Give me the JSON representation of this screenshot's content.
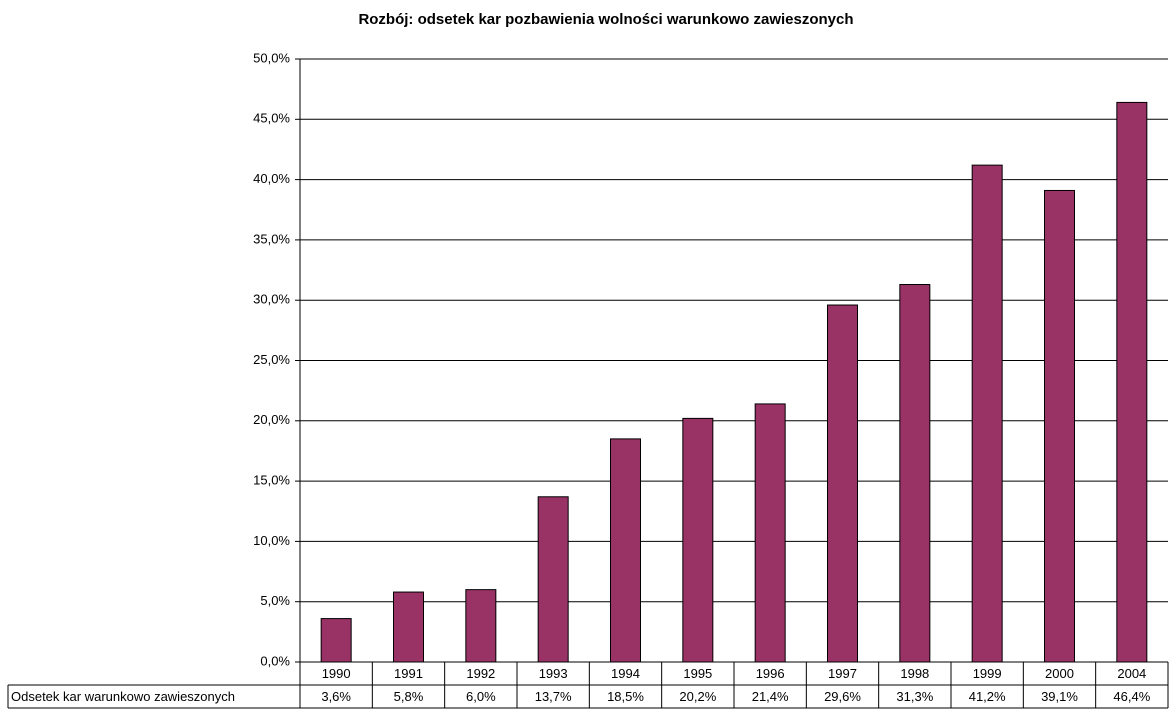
{
  "chart_data": {
    "type": "bar",
    "title": "Rozbój: odsetek kar pozbawienia wolności warunkowo zawieszonych",
    "categories": [
      "1990",
      "1991",
      "1992",
      "1993",
      "1994",
      "1995",
      "1996",
      "1997",
      "1998",
      "1999",
      "2000",
      "2004"
    ],
    "series": [
      {
        "name": "Odsetek kar warunkowo zawieszonych",
        "color": "#993366",
        "values": [
          3.6,
          5.8,
          6.0,
          13.7,
          18.5,
          20.2,
          21.4,
          29.6,
          31.3,
          41.2,
          39.1,
          46.4
        ],
        "value_labels": [
          "3,6%",
          "5,8%",
          "6,0%",
          "13,7%",
          "18,5%",
          "20,2%",
          "21,4%",
          "29,6%",
          "31,3%",
          "41,2%",
          "39,1%",
          "46,4%"
        ]
      }
    ],
    "ylim": [
      0,
      50
    ],
    "yticks": [
      {
        "value": 0,
        "label": "0,0%"
      },
      {
        "value": 5,
        "label": "5,0%"
      },
      {
        "value": 10,
        "label": "10,0%"
      },
      {
        "value": 15,
        "label": "15,0%"
      },
      {
        "value": 20,
        "label": "20,0%"
      },
      {
        "value": 25,
        "label": "25,0%"
      },
      {
        "value": 30,
        "label": "30,0%"
      },
      {
        "value": 35,
        "label": "35,0%"
      },
      {
        "value": 40,
        "label": "40,0%"
      },
      {
        "value": 45,
        "label": "45,0%"
      },
      {
        "value": 50,
        "label": "50,0%"
      }
    ],
    "grid": true
  }
}
